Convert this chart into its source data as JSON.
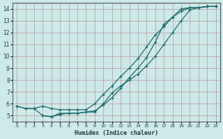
{
  "xlabel": "Humidex (Indice chaleur)",
  "bg_color": "#cceaea",
  "grid_color": "#c0a0a0",
  "line_color": "#1a6b6b",
  "xlim": [
    -0.5,
    23.5
  ],
  "ylim": [
    4.5,
    14.5
  ],
  "xticks": [
    0,
    1,
    2,
    3,
    4,
    5,
    6,
    7,
    8,
    9,
    10,
    11,
    12,
    13,
    14,
    15,
    16,
    17,
    18,
    19,
    20,
    21,
    22,
    23
  ],
  "yticks": [
    5,
    6,
    7,
    8,
    9,
    10,
    11,
    12,
    13,
    14
  ],
  "line1_x": [
    0,
    1,
    2,
    3,
    4,
    5,
    6,
    7,
    8,
    9,
    10,
    11,
    12,
    13,
    14,
    15,
    16,
    17,
    18,
    19,
    20,
    21,
    22,
    23
  ],
  "line1_y": [
    5.8,
    5.6,
    5.6,
    5.0,
    4.9,
    5.2,
    5.2,
    5.2,
    5.3,
    5.3,
    6.0,
    6.9,
    7.5,
    8.0,
    8.5,
    9.2,
    10.0,
    11.0,
    12.0,
    13.0,
    13.9,
    14.1,
    14.2,
    14.2
  ],
  "line2_x": [
    0,
    1,
    2,
    3,
    4,
    5,
    6,
    7,
    8,
    9,
    10,
    11,
    12,
    13,
    14,
    15,
    16,
    17,
    18,
    19,
    20,
    21,
    22,
    23
  ],
  "line2_y": [
    5.8,
    5.6,
    5.6,
    5.8,
    5.6,
    5.5,
    5.5,
    5.5,
    5.5,
    6.0,
    6.8,
    7.5,
    8.3,
    9.0,
    9.8,
    10.8,
    11.8,
    12.5,
    13.3,
    13.8,
    14.1,
    14.1,
    14.2,
    14.2
  ],
  "line3_x": [
    3,
    4,
    5,
    6,
    7,
    8,
    9,
    10,
    11,
    12,
    13,
    14,
    15,
    16,
    17,
    18,
    19,
    20,
    21,
    22,
    23
  ],
  "line3_y": [
    5.0,
    4.9,
    5.1,
    5.2,
    5.2,
    5.3,
    5.4,
    5.9,
    6.5,
    7.3,
    8.2,
    9.0,
    9.9,
    11.2,
    12.7,
    13.3,
    14.0,
    14.1,
    14.1,
    14.2,
    14.2
  ]
}
